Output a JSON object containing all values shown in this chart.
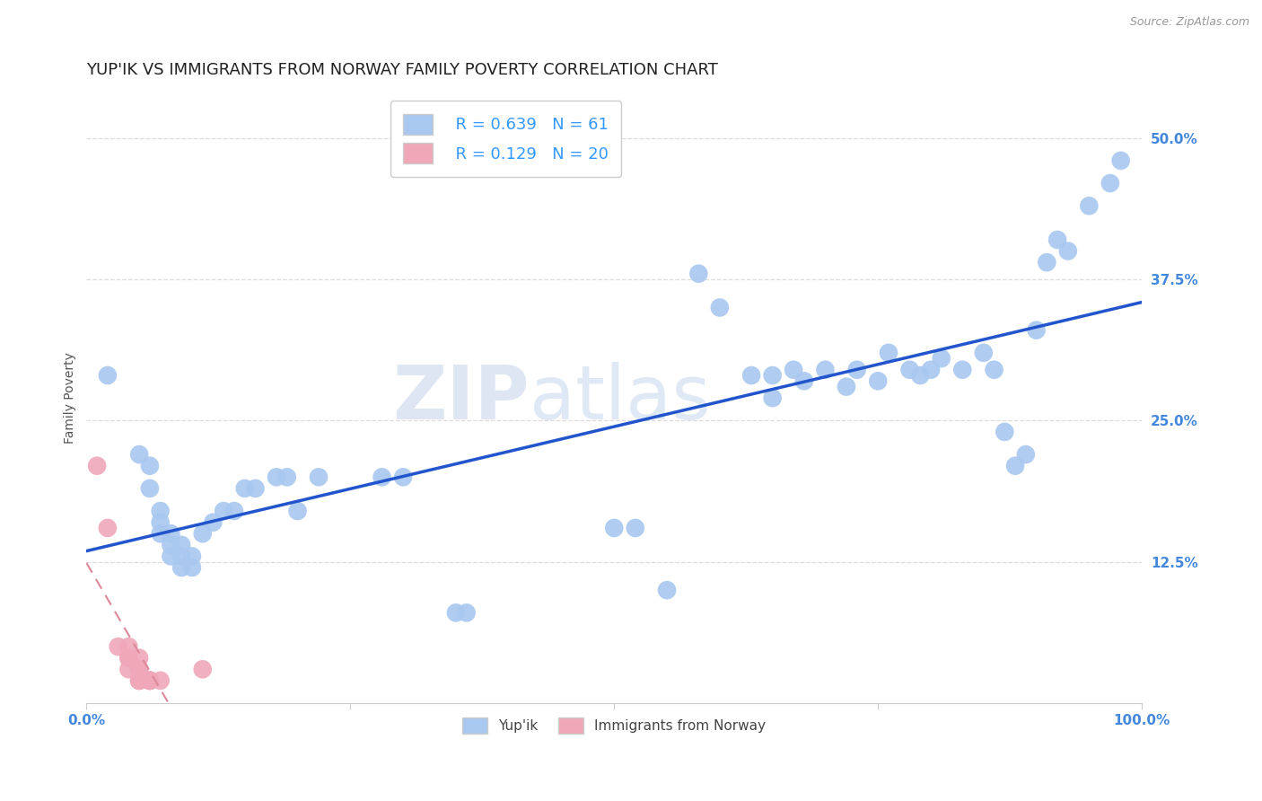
{
  "title": "YUP'IK VS IMMIGRANTS FROM NORWAY FAMILY POVERTY CORRELATION CHART",
  "source": "Source: ZipAtlas.com",
  "ylabel": "Family Poverty",
  "xlim": [
    0,
    1.0
  ],
  "ylim": [
    0,
    0.54
  ],
  "xticks": [
    0.0,
    0.25,
    0.5,
    0.75,
    1.0
  ],
  "xtick_labels": [
    "0.0%",
    "",
    "",
    "",
    "100.0%"
  ],
  "ytick_labels": [
    "12.5%",
    "25.0%",
    "37.5%",
    "50.0%"
  ],
  "yticks": [
    0.125,
    0.25,
    0.375,
    0.5
  ],
  "watermark1": "ZIP",
  "watermark2": "atlas",
  "legend_R1": "R = 0.639",
  "legend_N1": "N = 61",
  "legend_R2": "R = 0.129",
  "legend_N2": "N = 20",
  "yupik_color": "#a8c8f0",
  "norway_color": "#f0a8b8",
  "yupik_line_color": "#2255cc",
  "norway_line_color": "#dd8899",
  "background_color": "#ffffff",
  "yupik_scatter": [
    [
      0.02,
      0.29
    ],
    [
      0.05,
      0.22
    ],
    [
      0.06,
      0.21
    ],
    [
      0.06,
      0.19
    ],
    [
      0.07,
      0.17
    ],
    [
      0.07,
      0.16
    ],
    [
      0.07,
      0.15
    ],
    [
      0.08,
      0.15
    ],
    [
      0.08,
      0.14
    ],
    [
      0.08,
      0.13
    ],
    [
      0.09,
      0.14
    ],
    [
      0.09,
      0.13
    ],
    [
      0.09,
      0.12
    ],
    [
      0.1,
      0.13
    ],
    [
      0.1,
      0.12
    ],
    [
      0.11,
      0.15
    ],
    [
      0.12,
      0.16
    ],
    [
      0.13,
      0.17
    ],
    [
      0.14,
      0.17
    ],
    [
      0.15,
      0.19
    ],
    [
      0.16,
      0.19
    ],
    [
      0.18,
      0.2
    ],
    [
      0.19,
      0.2
    ],
    [
      0.2,
      0.17
    ],
    [
      0.22,
      0.2
    ],
    [
      0.28,
      0.2
    ],
    [
      0.3,
      0.2
    ],
    [
      0.35,
      0.08
    ],
    [
      0.36,
      0.08
    ],
    [
      0.5,
      0.155
    ],
    [
      0.52,
      0.155
    ],
    [
      0.55,
      0.1
    ],
    [
      0.58,
      0.38
    ],
    [
      0.6,
      0.35
    ],
    [
      0.63,
      0.29
    ],
    [
      0.65,
      0.27
    ],
    [
      0.65,
      0.29
    ],
    [
      0.67,
      0.295
    ],
    [
      0.68,
      0.285
    ],
    [
      0.7,
      0.295
    ],
    [
      0.72,
      0.28
    ],
    [
      0.73,
      0.295
    ],
    [
      0.75,
      0.285
    ],
    [
      0.76,
      0.31
    ],
    [
      0.78,
      0.295
    ],
    [
      0.79,
      0.29
    ],
    [
      0.8,
      0.295
    ],
    [
      0.81,
      0.305
    ],
    [
      0.83,
      0.295
    ],
    [
      0.85,
      0.31
    ],
    [
      0.86,
      0.295
    ],
    [
      0.87,
      0.24
    ],
    [
      0.88,
      0.21
    ],
    [
      0.89,
      0.22
    ],
    [
      0.9,
      0.33
    ],
    [
      0.91,
      0.39
    ],
    [
      0.92,
      0.41
    ],
    [
      0.93,
      0.4
    ],
    [
      0.95,
      0.44
    ],
    [
      0.97,
      0.46
    ],
    [
      0.98,
      0.48
    ]
  ],
  "norway_scatter": [
    [
      0.01,
      0.21
    ],
    [
      0.02,
      0.155
    ],
    [
      0.03,
      0.05
    ],
    [
      0.04,
      0.05
    ],
    [
      0.04,
      0.04
    ],
    [
      0.04,
      0.04
    ],
    [
      0.04,
      0.03
    ],
    [
      0.05,
      0.04
    ],
    [
      0.05,
      0.03
    ],
    [
      0.05,
      0.03
    ],
    [
      0.05,
      0.02
    ],
    [
      0.05,
      0.02
    ],
    [
      0.05,
      0.02
    ],
    [
      0.06,
      0.02
    ],
    [
      0.06,
      0.02
    ],
    [
      0.06,
      0.02
    ],
    [
      0.06,
      0.02
    ],
    [
      0.06,
      0.02
    ],
    [
      0.07,
      0.02
    ],
    [
      0.11,
      0.03
    ]
  ],
  "grid_color": "#dddddd",
  "title_fontsize": 13,
  "axis_label_fontsize": 10,
  "tick_fontsize": 11
}
